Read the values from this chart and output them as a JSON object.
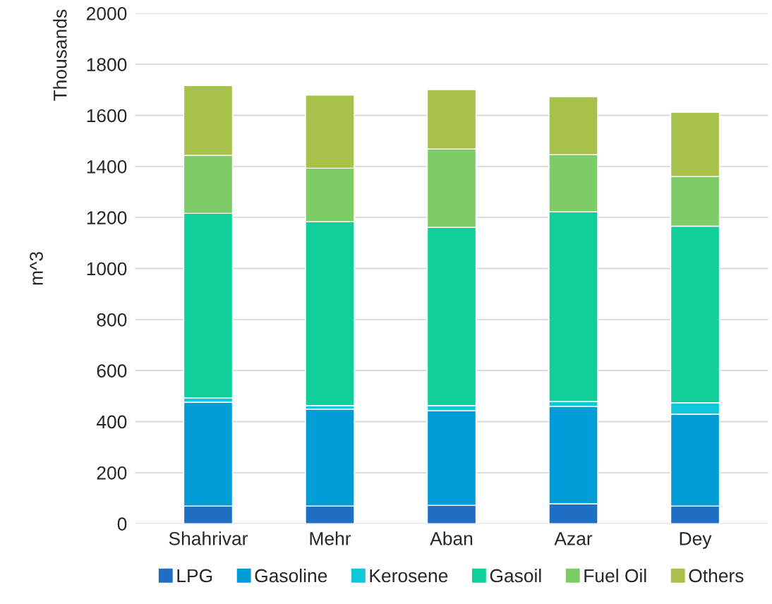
{
  "chart_data": {
    "type": "bar",
    "stacked": true,
    "ylabel": "m^3",
    "annotations": [
      "Thousands"
    ],
    "categories": [
      "Shahrivar",
      "Mehr",
      "Aban",
      "Azar",
      "Dey"
    ],
    "series": [
      {
        "name": "LPG",
        "color": "#1f6fc5",
        "values": [
          69,
          69,
          72,
          78,
          69
        ]
      },
      {
        "name": "Gasoline",
        "color": "#029cd7",
        "values": [
          407,
          380,
          371,
          382,
          360
        ]
      },
      {
        "name": "Kerosene",
        "color": "#0fc7d8",
        "values": [
          17,
          14,
          20,
          19,
          45
        ]
      },
      {
        "name": "Gasoil",
        "color": "#10cf9b",
        "values": [
          723,
          720,
          698,
          743,
          692
        ]
      },
      {
        "name": "Fuel Oil",
        "color": "#7dcc66",
        "values": [
          227,
          210,
          307,
          224,
          194
        ]
      },
      {
        "name": "Others",
        "color": "#a8c14a",
        "values": [
          274,
          286,
          233,
          227,
          252
        ]
      }
    ],
    "ylim": [
      0,
      2000
    ],
    "yticks": [
      0,
      200,
      400,
      600,
      800,
      1000,
      1200,
      1400,
      1600,
      1800,
      2000
    ],
    "grid": "y",
    "legend": "bottom"
  }
}
